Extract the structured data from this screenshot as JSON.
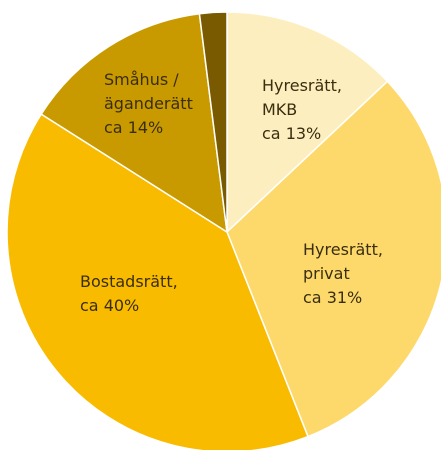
{
  "chart_data": {
    "type": "pie",
    "categories": [
      "Hyresrätt,\nMKB",
      "Hyresrätt,\nprivat",
      "Bostadsrätt,",
      "Småhus /\nägande­rätt",
      null
    ],
    "categories_note_free": true,
    "values": [
      13,
      31,
      40,
      14,
      2
    ],
    "value_labels": [
      "ca 13%",
      "ca 31%",
      "ca 40%",
      "ca 14%",
      null
    ],
    "colors": [
      "#fdeebf",
      "#fdd96b",
      "#f9bb00",
      "#c99a00",
      "#7a5a00"
    ]
  }
}
